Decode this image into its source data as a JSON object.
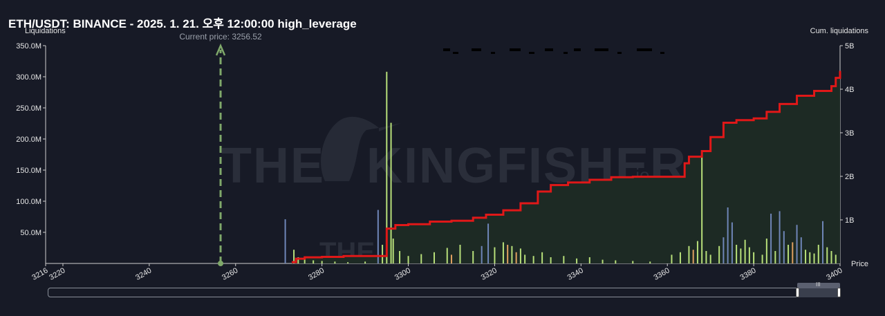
{
  "title": "ETH/USDT: BINANCE - 2025. 1. 21. 오후 12:00:00 high_leverage",
  "colors": {
    "background": "#171a26",
    "cumulative_line": "#e01818",
    "cumulative_fill": "#1d2a24",
    "current_price": "#7fa86a",
    "bar_green": "#b8e07a",
    "bar_blue": "#6f86b8",
    "bar_orange": "#e0a060"
  },
  "chart_data": {
    "type": "bar",
    "xlabel": "Price",
    "ylabel_left": "Liquidations",
    "ylabel_right": "Cum. liquidations",
    "xlim": [
      3216,
      3400
    ],
    "ylim_left": [
      0,
      350000000
    ],
    "ylim_right": [
      0,
      5000000000
    ],
    "x_ticks": [
      "3216",
      "3220",
      "3240",
      "3260",
      "3280",
      "3300",
      "3320",
      "3340",
      "3360",
      "3380",
      "3400"
    ],
    "x_tick_values": [
      3216,
      3220,
      3240,
      3260,
      3280,
      3300,
      3320,
      3340,
      3360,
      3380,
      3400
    ],
    "y_left_ticks": [
      "50.0M",
      "100.0M",
      "150.0M",
      "200.0M",
      "250.0M",
      "300.0M",
      "350.0M"
    ],
    "y_left_tick_values": [
      50000000,
      100000000,
      150000000,
      200000000,
      250000000,
      300000000,
      350000000
    ],
    "y_right_ticks": [
      "1B",
      "2B",
      "3B",
      "4B",
      "5B"
    ],
    "y_right_tick_values": [
      1000000000,
      2000000000,
      3000000000,
      4000000000,
      5000000000
    ],
    "current_price": 3256.52,
    "current_price_label": "Current price: 3256.52",
    "watermark": "THE KINGFISHER.io",
    "bars": [
      {
        "x": 3271.5,
        "v": 71000000,
        "c": "blue"
      },
      {
        "x": 3273.5,
        "v": 22000000,
        "c": "green"
      },
      {
        "x": 3274.5,
        "v": 10000000,
        "c": "green"
      },
      {
        "x": 3276,
        "v": 6000000,
        "c": "green"
      },
      {
        "x": 3278,
        "v": 5000000,
        "c": "green"
      },
      {
        "x": 3280,
        "v": 4000000,
        "c": "green"
      },
      {
        "x": 3283,
        "v": 3000000,
        "c": "green"
      },
      {
        "x": 3286,
        "v": 2000000,
        "c": "green"
      },
      {
        "x": 3290,
        "v": 3000000,
        "c": "green"
      },
      {
        "x": 3293,
        "v": 86000000,
        "c": "blue"
      },
      {
        "x": 3294,
        "v": 30000000,
        "c": "green"
      },
      {
        "x": 3295,
        "v": 308000000,
        "c": "green"
      },
      {
        "x": 3296,
        "v": 226000000,
        "c": "green"
      },
      {
        "x": 3296.5,
        "v": 40000000,
        "c": "green"
      },
      {
        "x": 3298,
        "v": 20000000,
        "c": "green"
      },
      {
        "x": 3300,
        "v": 12000000,
        "c": "green"
      },
      {
        "x": 3303,
        "v": 15000000,
        "c": "green"
      },
      {
        "x": 3306,
        "v": 18000000,
        "c": "green"
      },
      {
        "x": 3309,
        "v": 25000000,
        "c": "green"
      },
      {
        "x": 3310,
        "v": 14000000,
        "c": "orange"
      },
      {
        "x": 3312,
        "v": 30000000,
        "c": "green"
      },
      {
        "x": 3315,
        "v": 20000000,
        "c": "green"
      },
      {
        "x": 3317,
        "v": 28000000,
        "c": "blue"
      },
      {
        "x": 3318.5,
        "v": 64000000,
        "c": "blue"
      },
      {
        "x": 3320,
        "v": 26000000,
        "c": "green"
      },
      {
        "x": 3322,
        "v": 34000000,
        "c": "green"
      },
      {
        "x": 3323,
        "v": 30000000,
        "c": "orange"
      },
      {
        "x": 3324,
        "v": 28000000,
        "c": "green"
      },
      {
        "x": 3325,
        "v": 18000000,
        "c": "orange"
      },
      {
        "x": 3326,
        "v": 24000000,
        "c": "green"
      },
      {
        "x": 3327,
        "v": 14000000,
        "c": "green"
      },
      {
        "x": 3329,
        "v": 12000000,
        "c": "green"
      },
      {
        "x": 3331,
        "v": 18000000,
        "c": "green"
      },
      {
        "x": 3333,
        "v": 10000000,
        "c": "green"
      },
      {
        "x": 3336,
        "v": 12000000,
        "c": "green"
      },
      {
        "x": 3339,
        "v": 8000000,
        "c": "green"
      },
      {
        "x": 3342,
        "v": 10000000,
        "c": "green"
      },
      {
        "x": 3345,
        "v": 6000000,
        "c": "green"
      },
      {
        "x": 3348,
        "v": 5000000,
        "c": "green"
      },
      {
        "x": 3352,
        "v": 4000000,
        "c": "green"
      },
      {
        "x": 3356,
        "v": 3000000,
        "c": "green"
      },
      {
        "x": 3361,
        "v": 14000000,
        "c": "green"
      },
      {
        "x": 3363,
        "v": 18000000,
        "c": "green"
      },
      {
        "x": 3365,
        "v": 28000000,
        "c": "green"
      },
      {
        "x": 3366,
        "v": 22000000,
        "c": "orange"
      },
      {
        "x": 3367,
        "v": 36000000,
        "c": "green"
      },
      {
        "x": 3368,
        "v": 182000000,
        "c": "green"
      },
      {
        "x": 3369,
        "v": 20000000,
        "c": "green"
      },
      {
        "x": 3370,
        "v": 14000000,
        "c": "green"
      },
      {
        "x": 3372,
        "v": 28000000,
        "c": "green"
      },
      {
        "x": 3373,
        "v": 42000000,
        "c": "blue"
      },
      {
        "x": 3374,
        "v": 90000000,
        "c": "blue"
      },
      {
        "x": 3375,
        "v": 66000000,
        "c": "blue"
      },
      {
        "x": 3376,
        "v": 30000000,
        "c": "green"
      },
      {
        "x": 3377,
        "v": 24000000,
        "c": "green"
      },
      {
        "x": 3378,
        "v": 38000000,
        "c": "green"
      },
      {
        "x": 3379,
        "v": 26000000,
        "c": "green"
      },
      {
        "x": 3380,
        "v": 18000000,
        "c": "green"
      },
      {
        "x": 3382,
        "v": 14000000,
        "c": "green"
      },
      {
        "x": 3383,
        "v": 40000000,
        "c": "green"
      },
      {
        "x": 3384,
        "v": 80000000,
        "c": "blue"
      },
      {
        "x": 3385,
        "v": 20000000,
        "c": "green"
      },
      {
        "x": 3386,
        "v": 84000000,
        "c": "blue"
      },
      {
        "x": 3387,
        "v": 52000000,
        "c": "blue"
      },
      {
        "x": 3388,
        "v": 30000000,
        "c": "green"
      },
      {
        "x": 3389,
        "v": 34000000,
        "c": "orange"
      },
      {
        "x": 3390,
        "v": 62000000,
        "c": "blue"
      },
      {
        "x": 3391,
        "v": 42000000,
        "c": "blue"
      },
      {
        "x": 3392,
        "v": 22000000,
        "c": "green"
      },
      {
        "x": 3393,
        "v": 18000000,
        "c": "green"
      },
      {
        "x": 3394,
        "v": 16000000,
        "c": "green"
      },
      {
        "x": 3395,
        "v": 30000000,
        "c": "green"
      },
      {
        "x": 3396,
        "v": 68000000,
        "c": "blue"
      },
      {
        "x": 3397,
        "v": 26000000,
        "c": "green"
      },
      {
        "x": 3398,
        "v": 20000000,
        "c": "green"
      },
      {
        "x": 3399,
        "v": 14000000,
        "c": "green"
      }
    ],
    "cumulative": [
      [
        3273,
        30000000
      ],
      [
        3274,
        110000000
      ],
      [
        3276,
        140000000
      ],
      [
        3280,
        150000000
      ],
      [
        3285,
        170000000
      ],
      [
        3290,
        170000000
      ],
      [
        3294.5,
        170000000
      ],
      [
        3295,
        800000000
      ],
      [
        3297,
        880000000
      ],
      [
        3300,
        900000000
      ],
      [
        3305,
        960000000
      ],
      [
        3310,
        980000000
      ],
      [
        3315,
        1050000000
      ],
      [
        3318,
        1120000000
      ],
      [
        3322,
        1220000000
      ],
      [
        3326,
        1380000000
      ],
      [
        3330,
        1650000000
      ],
      [
        3333,
        1800000000
      ],
      [
        3337,
        1860000000
      ],
      [
        3342,
        1920000000
      ],
      [
        3347,
        1980000000
      ],
      [
        3352,
        1990000000
      ],
      [
        3357,
        1990000000
      ],
      [
        3362,
        1990000000
      ],
      [
        3364,
        2300000000
      ],
      [
        3365,
        2450000000
      ],
      [
        3368,
        2580000000
      ],
      [
        3370,
        2900000000
      ],
      [
        3373,
        3230000000
      ],
      [
        3376,
        3290000000
      ],
      [
        3380,
        3330000000
      ],
      [
        3383,
        3480000000
      ],
      [
        3386,
        3660000000
      ],
      [
        3390,
        3850000000
      ],
      [
        3394,
        3960000000
      ],
      [
        3398,
        4070000000
      ],
      [
        3399,
        4260000000
      ],
      [
        3400,
        4420000000
      ]
    ]
  },
  "scrollbar": {
    "grip": "III"
  }
}
